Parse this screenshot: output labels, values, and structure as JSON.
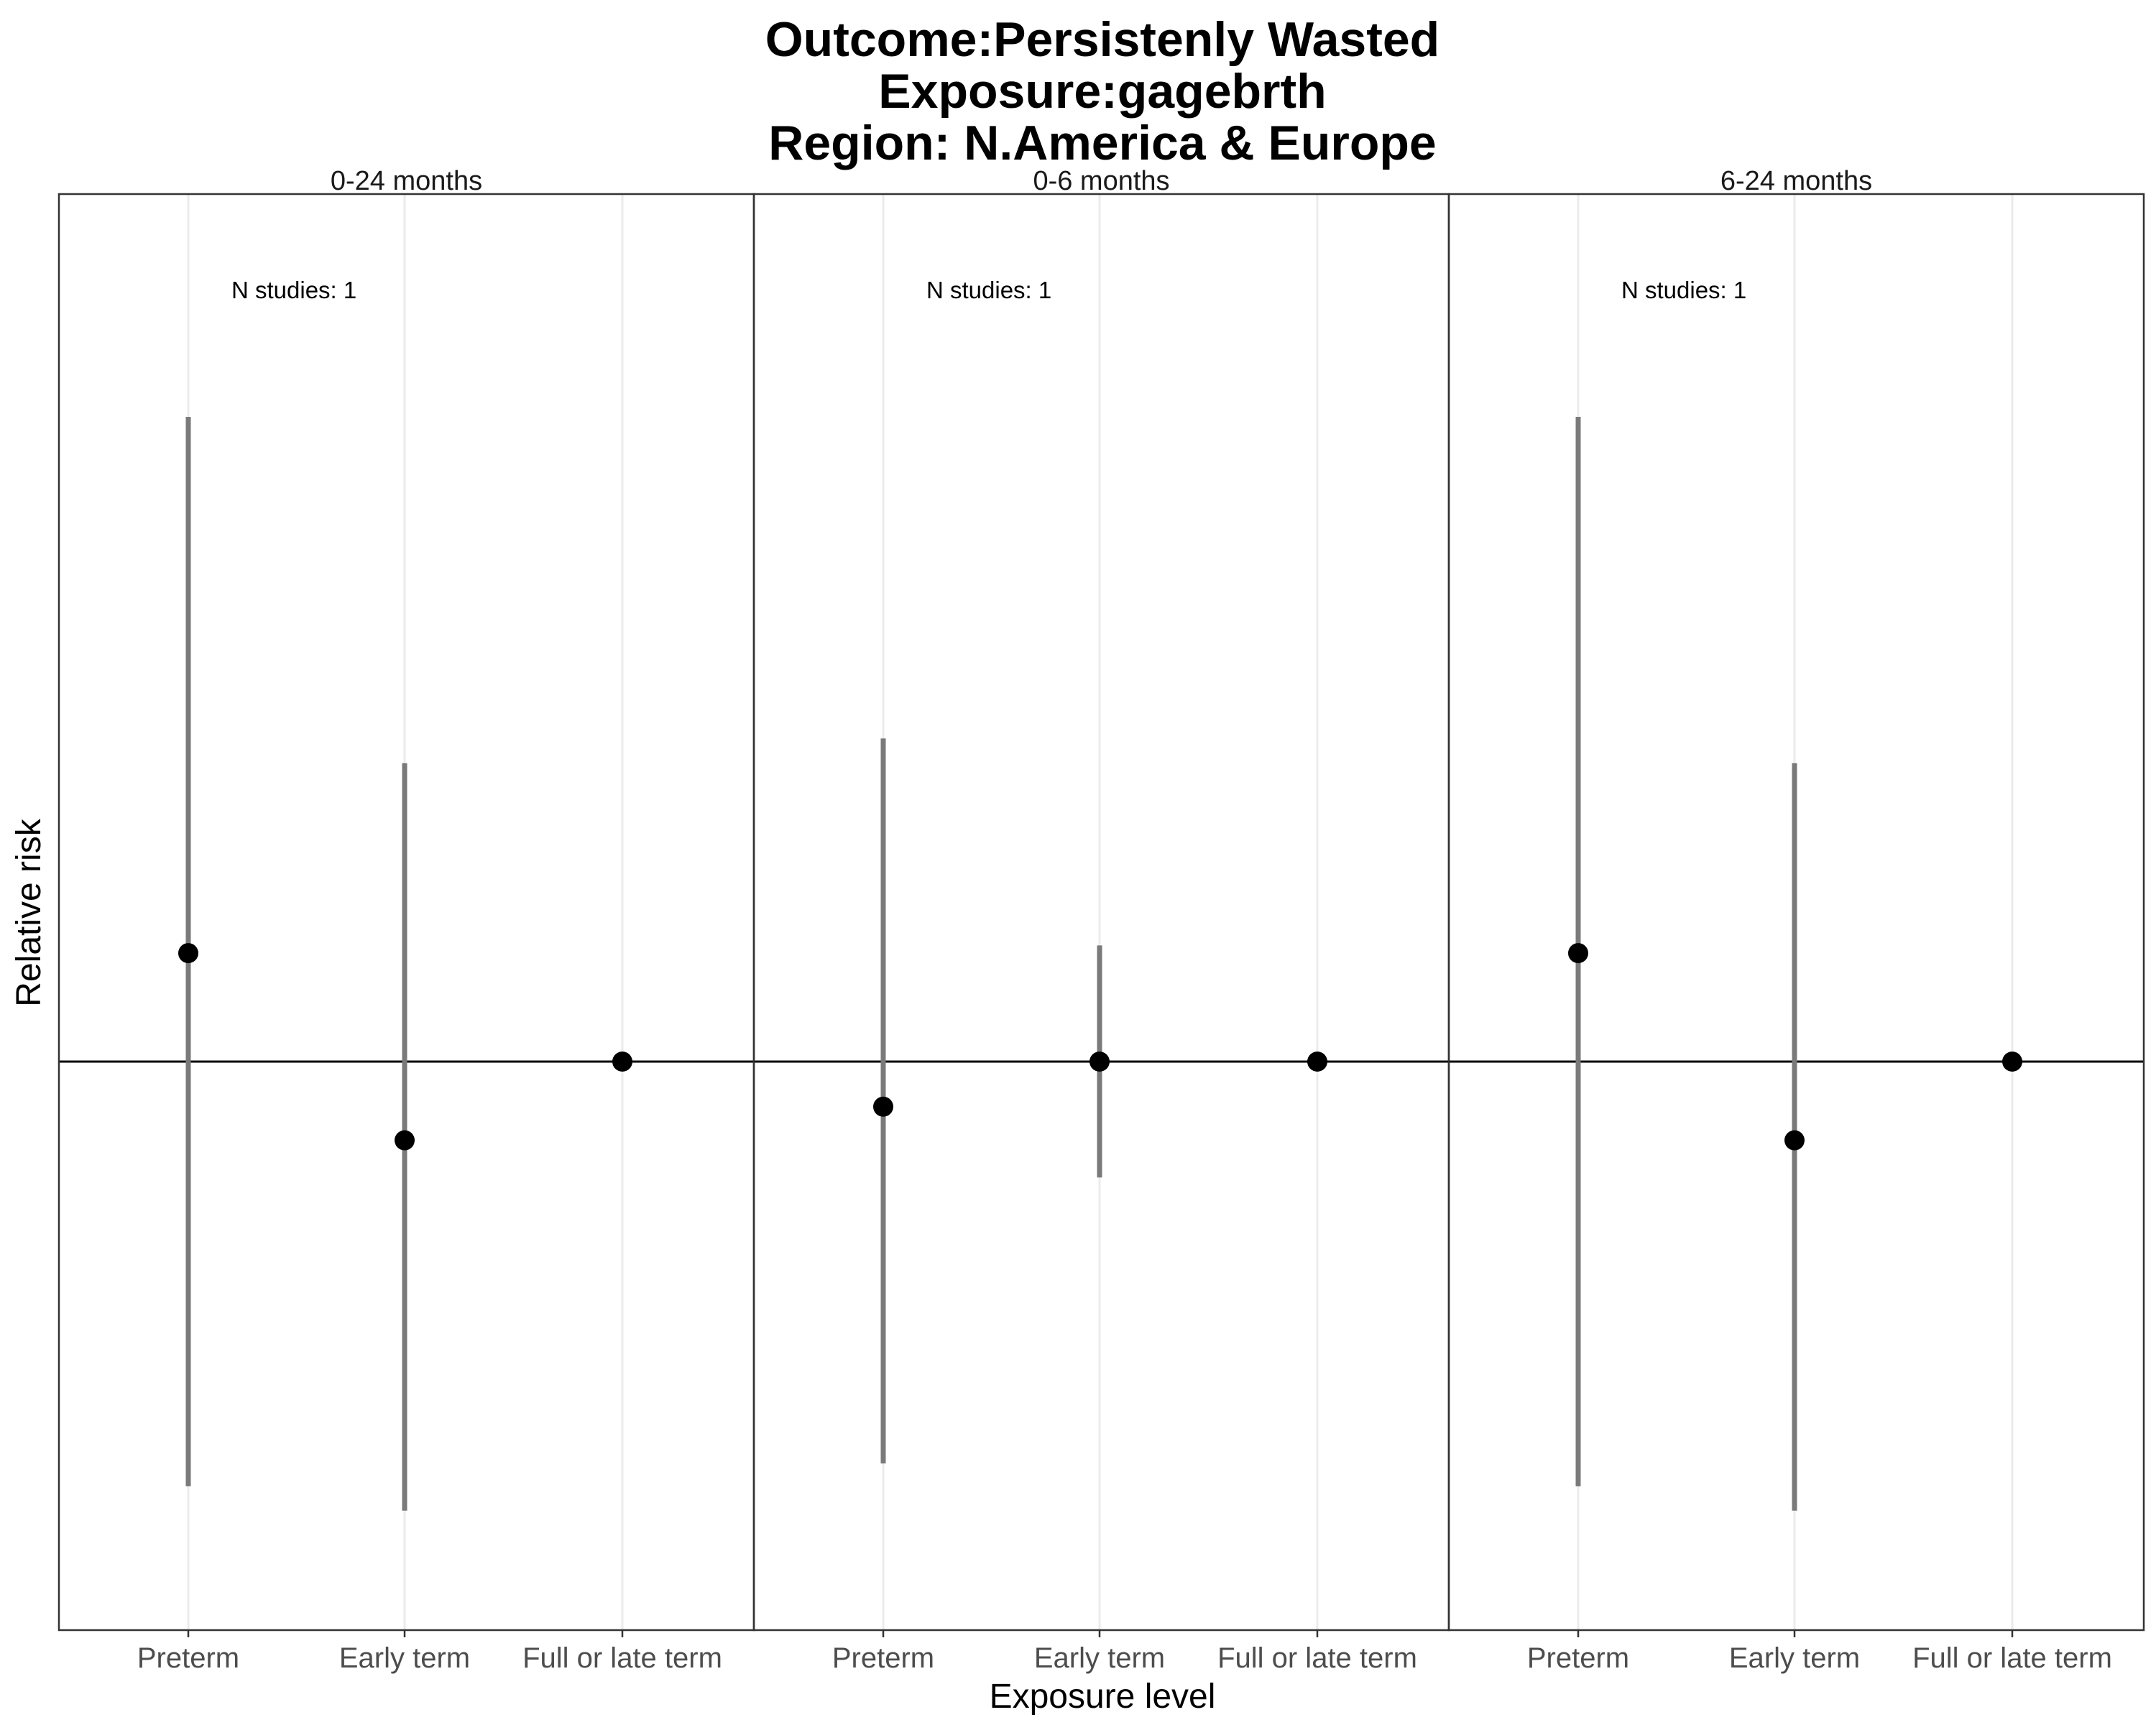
{
  "chart_data": {
    "type": "scatter",
    "title_lines": [
      "Outcome:Persistenly Wasted",
      "Exposure:gagebrth",
      "Region: N.America & Europe"
    ],
    "xlabel": "Exposure level",
    "ylabel": "Relative risk",
    "categories": [
      "Preterm",
      "Early term",
      "Full or late term"
    ],
    "reference_line": 1,
    "scale": "log",
    "y_ticks_shown": false,
    "grid": "vertical minor lines only",
    "point_color": "#000000",
    "interval_color": "#7a7a7a",
    "panels": [
      {
        "label": "0-24 months",
        "annotation": "N studies: 1",
        "points": [
          {
            "category": "Preterm",
            "rr": 1.36,
            "lower": 0.3,
            "upper": 6.22
          },
          {
            "category": "Early term",
            "rr": 0.8,
            "lower": 0.28,
            "upper": 2.33
          },
          {
            "category": "Full or late term",
            "rr": 1.0,
            "lower": null,
            "upper": null
          }
        ]
      },
      {
        "label": "0-6 months",
        "annotation": "N studies: 1",
        "points": [
          {
            "category": "Preterm",
            "rr": 0.88,
            "lower": 0.32,
            "upper": 2.5
          },
          {
            "category": "Early term",
            "rr": 1.0,
            "lower": 0.72,
            "upper": 1.39
          },
          {
            "category": "Full or late term",
            "rr": 1.0,
            "lower": null,
            "upper": null
          }
        ]
      },
      {
        "label": "6-24 months",
        "annotation": "N studies: 1",
        "points": [
          {
            "category": "Preterm",
            "rr": 1.36,
            "lower": 0.3,
            "upper": 6.22
          },
          {
            "category": "Early term",
            "rr": 0.8,
            "lower": 0.28,
            "upper": 2.33
          },
          {
            "category": "Full or late term",
            "rr": 1.0,
            "lower": null,
            "upper": null
          }
        ]
      }
    ]
  }
}
